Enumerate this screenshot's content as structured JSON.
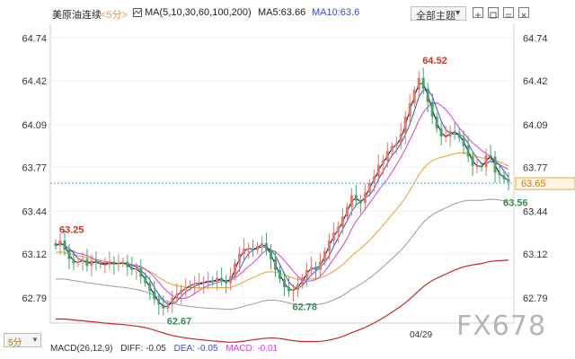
{
  "toolbar": {
    "symbol": "美原油连续",
    "period_select": "<5分>",
    "ma_params": "MA(5,10,30,60,100,200)",
    "ma5": "MA5:63.66",
    "ma10": "MA10:63.6",
    "theme_select": "全部主题",
    "icons": [
      "grid-icon",
      "crosshair-icon",
      "layout-icon",
      "settings-icon"
    ]
  },
  "bottom": {
    "period_button": "5分",
    "date_label": "04/29",
    "macd": {
      "params": "MACD(26,12,9)",
      "diff": "DIFF: -0.05",
      "dea": "DEA: -0.05",
      "macd": "MACD: -0.01"
    },
    "watermark": "FX678"
  },
  "colors": {
    "up_candle": "#e0786e",
    "down_candle": "#4aa070",
    "ma5": "#111111",
    "ma10": "#3a4fc2",
    "ma30": "#d142d1",
    "ma60": "#e0a030",
    "ma100": "#999999",
    "ma200": "#c62828",
    "last_price_line": "#4aa8c8",
    "last_price_tag": "#e8a23c"
  },
  "chart_data": {
    "type": "candlestick",
    "yaxis_ticks": [
      "64.74",
      "64.42",
      "64.09",
      "63.77",
      "63.44",
      "63.12",
      "62.79"
    ],
    "ylim": [
      62.6,
      64.85
    ],
    "last_price": "63.65",
    "annotations": [
      {
        "text": "63.25",
        "value": 63.25,
        "kind": "high"
      },
      {
        "text": "62.67",
        "value": 62.67,
        "kind": "low"
      },
      {
        "text": "62.78",
        "value": 62.78,
        "kind": "low"
      },
      {
        "text": "64.52",
        "value": 64.52,
        "kind": "high"
      },
      {
        "text": "63.56",
        "value": 63.56,
        "kind": "low"
      }
    ],
    "closes": [
      63.18,
      63.22,
      63.15,
      63.08,
      63.05,
      63.06,
      63.08,
      63.03,
      63.07,
      63.05,
      63.04,
      63.04,
      63.06,
      63.04,
      63.05,
      63.06,
      63.02,
      63.0,
      63.01,
      62.95,
      62.9,
      62.84,
      62.78,
      62.74,
      62.71,
      62.74,
      62.79,
      62.82,
      62.85,
      62.87,
      62.89,
      62.9,
      62.9,
      62.91,
      62.92,
      62.91,
      62.94,
      62.92,
      62.9,
      62.95,
      63.05,
      63.12,
      63.16,
      63.16,
      63.15,
      63.18,
      63.2,
      63.15,
      63.08,
      63.0,
      62.93,
      62.87,
      62.84,
      62.85,
      62.89,
      62.94,
      63.0,
      63.02,
      63.0,
      63.06,
      63.14,
      63.22,
      63.28,
      63.32,
      63.4,
      63.47,
      63.56,
      63.52,
      63.5,
      63.58,
      63.65,
      63.7,
      63.79,
      63.82,
      63.89,
      63.93,
      63.95,
      64.02,
      64.15,
      64.25,
      64.35,
      64.44,
      64.36,
      64.26,
      64.15,
      64.06,
      64.0,
      64.0,
      64.04,
      64.03,
      63.99,
      63.93,
      63.85,
      63.78,
      63.78,
      63.77,
      63.86,
      63.85,
      63.73,
      63.71,
      63.68,
      63.66
    ]
  }
}
